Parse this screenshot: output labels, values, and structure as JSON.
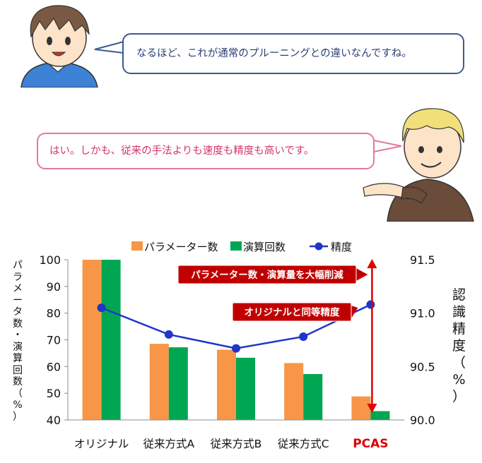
{
  "dialogue": {
    "boy_line": "なるほど、これが通常のプルーニングとの違いなんですね。",
    "man_line": "はい。しかも、従来の手法よりも速度も精度も高いです。"
  },
  "chart_data": {
    "type": "bar",
    "categories": [
      "オリジナル",
      "従来方式A",
      "従来方式B",
      "従来方式C",
      "PCAS"
    ],
    "series": [
      {
        "name": "パラメーター数",
        "type": "bar",
        "axis": "left",
        "color": "#f79646",
        "values": [
          100,
          68.5,
          66.3,
          61.3,
          48.8
        ]
      },
      {
        "name": "演算回数",
        "type": "bar",
        "axis": "left",
        "color": "#00a651",
        "values": [
          100,
          67.2,
          63.3,
          57.2,
          43.3
        ]
      },
      {
        "name": "精度",
        "type": "line",
        "axis": "right",
        "color": "#1f36c8",
        "values": [
          91.05,
          90.8,
          90.67,
          90.78,
          91.08
        ]
      }
    ],
    "ylabel": "パラメータ数・演算回数（%）",
    "y2label": "認識精度（%）",
    "ylim": [
      40,
      100
    ],
    "yticks": [
      40,
      50,
      60,
      70,
      80,
      90,
      100
    ],
    "y2lim": [
      90.0,
      91.5
    ],
    "y2ticks": [
      "90.0",
      "90.5",
      "91.0",
      "91.5"
    ],
    "grid": false,
    "legend_position": "top",
    "highlight_category": "PCAS",
    "highlight_color": "#e00000",
    "annotations": [
      {
        "text": "パラメーター数・演算量を大幅削減",
        "color": "#c00000"
      },
      {
        "text": "オリジナルと同等精度",
        "color": "#c00000"
      }
    ]
  }
}
